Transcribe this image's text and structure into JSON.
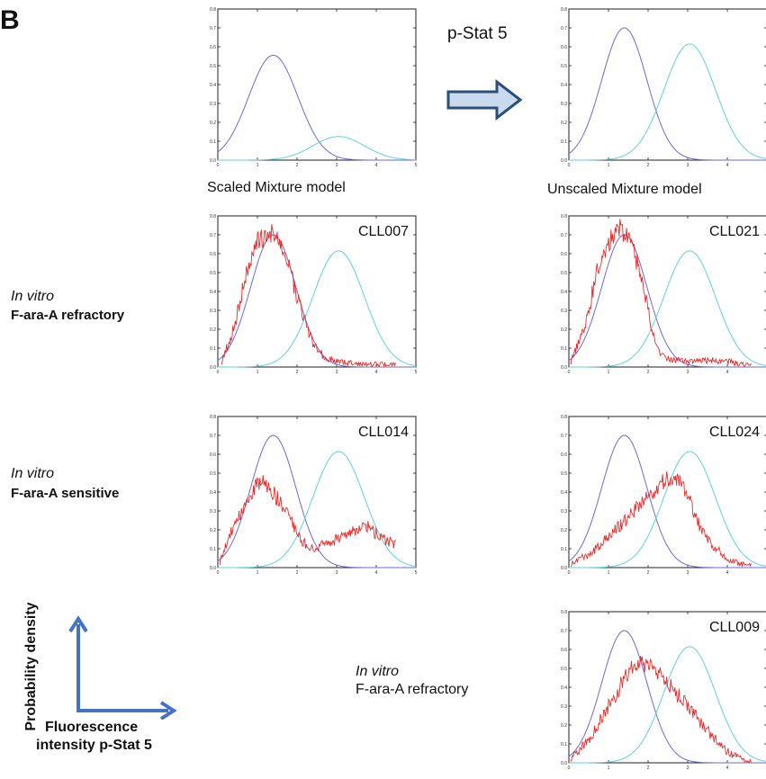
{
  "figure": {
    "panel_letter": "B",
    "arrow_label": "p-Stat 5",
    "model_labels": [
      "Scaled Mixture model",
      "Unscaled Mixture model"
    ],
    "group_labels": [
      {
        "italic": "In vitro",
        "text": "F-ara-A refractory"
      },
      {
        "italic": "In vitro",
        "text": "F-ara-A sensitive"
      },
      {
        "italic": "In vitro",
        "text": "F-ara-A refractory"
      }
    ],
    "axis_legend": {
      "ylabel": "Probability density",
      "xlabel_line1": "Fluorescence",
      "xlabel_line2": "intensity p-Stat 5"
    },
    "colors": {
      "component1": "#6a6ae0",
      "component2": "#5fd3dd",
      "sample": "#ee2a2a",
      "arrow": "#c9d9ee",
      "arrow_stroke": "#2b4f78",
      "axis_arrow": "#4472c4"
    }
  },
  "chart_data": [
    {
      "type": "line",
      "title": "",
      "sample": "",
      "xlim": [
        0,
        5
      ],
      "ylim": [
        0,
        0.8
      ],
      "xticks": [
        "0",
        "1",
        "2",
        "3",
        "4",
        "5"
      ],
      "yticks": [
        "0.0",
        "0.1",
        "0.2",
        "0.3",
        "0.4",
        "0.5",
        "0.6",
        "0.7",
        "0.8"
      ],
      "series": [
        {
          "kind": "gaussian",
          "mean": 1.4,
          "sd": 0.62,
          "peak": 0.555
        },
        {
          "kind": "gaussian",
          "mean": 3.05,
          "sd": 0.65,
          "peak": 0.125
        }
      ]
    },
    {
      "type": "line",
      "title": "",
      "sample": "",
      "xlim": [
        0,
        5
      ],
      "ylim": [
        0,
        0.8
      ],
      "xticks": [
        "0",
        "1",
        "2",
        "3",
        "4",
        "5"
      ],
      "yticks": [
        "0.0",
        "0.1",
        "0.2",
        "0.3",
        "0.4",
        "0.5",
        "0.6",
        "0.7",
        "0.8"
      ],
      "series": [
        {
          "kind": "gaussian",
          "mean": 1.4,
          "sd": 0.57,
          "peak": 0.7
        },
        {
          "kind": "gaussian",
          "mean": 3.05,
          "sd": 0.65,
          "peak": 0.615
        }
      ]
    },
    {
      "type": "line",
      "title": "",
      "sample": "CLL007",
      "xlim": [
        0,
        5
      ],
      "ylim": [
        0,
        0.8
      ],
      "xticks": [
        "0",
        "1",
        "2",
        "3",
        "4",
        "5"
      ],
      "yticks": [
        "0.0",
        "0.1",
        "0.2",
        "0.3",
        "0.4",
        "0.5",
        "0.6",
        "0.7",
        "0.8"
      ],
      "series": [
        {
          "kind": "gaussian",
          "mean": 1.4,
          "sd": 0.57,
          "peak": 0.7
        },
        {
          "kind": "gaussian",
          "mean": 3.05,
          "sd": 0.65,
          "peak": 0.615
        },
        {
          "kind": "histogram",
          "x": [
            0.1,
            0.4,
            0.7,
            1.0,
            1.3,
            1.5,
            1.8,
            2.1,
            2.4,
            2.7,
            3.0,
            3.5,
            4.0,
            4.5
          ],
          "y": [
            0.03,
            0.2,
            0.48,
            0.66,
            0.71,
            0.68,
            0.52,
            0.3,
            0.12,
            0.05,
            0.03,
            0.02,
            0.015,
            0.01
          ],
          "xmax": 4.5
        }
      ]
    },
    {
      "type": "line",
      "title": "",
      "sample": "CLL021",
      "xlim": [
        0,
        5
      ],
      "ylim": [
        0,
        0.8
      ],
      "xticks": [
        "0",
        "1",
        "2",
        "3",
        "4",
        "5"
      ],
      "yticks": [
        "0.0",
        "0.1",
        "0.2",
        "0.3",
        "0.4",
        "0.5",
        "0.6",
        "0.7",
        "0.8"
      ],
      "series": [
        {
          "kind": "gaussian",
          "mean": 1.4,
          "sd": 0.57,
          "peak": 0.7
        },
        {
          "kind": "gaussian",
          "mean": 3.05,
          "sd": 0.65,
          "peak": 0.615
        },
        {
          "kind": "histogram",
          "x": [
            0.05,
            0.4,
            0.7,
            1.0,
            1.3,
            1.5,
            1.8,
            2.0,
            2.2,
            2.5,
            3.0,
            3.5,
            4.0,
            4.5
          ],
          "y": [
            0.03,
            0.2,
            0.5,
            0.66,
            0.73,
            0.7,
            0.5,
            0.3,
            0.1,
            0.04,
            0.03,
            0.035,
            0.03,
            0.01
          ],
          "xmax": 4.6
        }
      ]
    },
    {
      "type": "line",
      "title": "",
      "sample": "CLL014",
      "xlim": [
        0,
        5
      ],
      "ylim": [
        0,
        0.8
      ],
      "xticks": [
        "0",
        "1",
        "2",
        "3",
        "4",
        "5"
      ],
      "yticks": [
        "0.0",
        "0.1",
        "0.2",
        "0.3",
        "0.4",
        "0.5",
        "0.6",
        "0.7",
        "0.8"
      ],
      "series": [
        {
          "kind": "gaussian",
          "mean": 1.4,
          "sd": 0.57,
          "peak": 0.7
        },
        {
          "kind": "gaussian",
          "mean": 3.05,
          "sd": 0.65,
          "peak": 0.615
        },
        {
          "kind": "histogram",
          "x": [
            0.05,
            0.4,
            0.8,
            1.1,
            1.4,
            1.7,
            2.0,
            2.3,
            2.6,
            3.0,
            3.4,
            3.8,
            4.1,
            4.5
          ],
          "y": [
            0.03,
            0.22,
            0.38,
            0.46,
            0.4,
            0.3,
            0.18,
            0.1,
            0.12,
            0.15,
            0.19,
            0.22,
            0.16,
            0.12
          ],
          "xmax": 4.5
        }
      ]
    },
    {
      "type": "line",
      "title": "",
      "sample": "CLL024",
      "xlim": [
        0,
        5
      ],
      "ylim": [
        0,
        0.8
      ],
      "xticks": [
        "0",
        "1",
        "2",
        "3",
        "4",
        "5"
      ],
      "yticks": [
        "0.0",
        "0.1",
        "0.2",
        "0.3",
        "0.4",
        "0.5",
        "0.6",
        "0.7",
        "0.8"
      ],
      "series": [
        {
          "kind": "gaussian",
          "mean": 1.4,
          "sd": 0.57,
          "peak": 0.7
        },
        {
          "kind": "gaussian",
          "mean": 3.05,
          "sd": 0.65,
          "peak": 0.615
        },
        {
          "kind": "histogram",
          "x": [
            0.05,
            0.5,
            1.0,
            1.5,
            2.0,
            2.4,
            2.7,
            3.0,
            3.3,
            3.6,
            4.0,
            4.3,
            4.6
          ],
          "y": [
            0.02,
            0.07,
            0.16,
            0.27,
            0.38,
            0.46,
            0.48,
            0.38,
            0.22,
            0.12,
            0.05,
            0.02,
            0.01
          ],
          "xmax": 4.6
        }
      ]
    },
    {
      "type": "line",
      "title": "",
      "sample": "CLL009",
      "xlim": [
        0,
        5
      ],
      "ylim": [
        0,
        0.8
      ],
      "xticks": [
        "0",
        "1",
        "2",
        "3",
        "4",
        "5"
      ],
      "yticks": [
        "0.0",
        "0.1",
        "0.2",
        "0.3",
        "0.4",
        "0.5",
        "0.6",
        "0.7",
        "0.8"
      ],
      "series": [
        {
          "kind": "gaussian",
          "mean": 1.4,
          "sd": 0.57,
          "peak": 0.7
        },
        {
          "kind": "gaussian",
          "mean": 3.05,
          "sd": 0.65,
          "peak": 0.615
        },
        {
          "kind": "histogram",
          "x": [
            0.05,
            0.5,
            1.0,
            1.5,
            1.8,
            2.1,
            2.5,
            3.0,
            3.5,
            4.0,
            4.5
          ],
          "y": [
            0.02,
            0.12,
            0.3,
            0.48,
            0.53,
            0.5,
            0.42,
            0.3,
            0.17,
            0.06,
            0.01
          ],
          "xmax": 4.6
        }
      ]
    }
  ]
}
